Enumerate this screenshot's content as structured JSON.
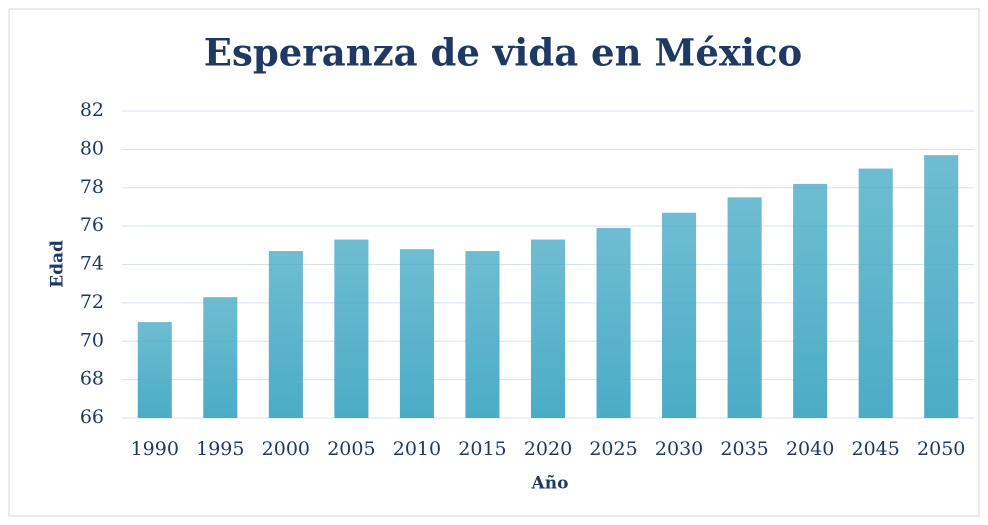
{
  "chart_data": {
    "type": "bar",
    "title": "Esperanza de vida en México",
    "x_label": "Año",
    "y_label": "Edad",
    "categories": [
      "1990",
      "1995",
      "2000",
      "2005",
      "2010",
      "2015",
      "2020",
      "2025",
      "2030",
      "2035",
      "2040",
      "2045",
      "2050"
    ],
    "values": [
      71.0,
      72.3,
      74.7,
      75.3,
      74.8,
      74.7,
      75.3,
      75.9,
      76.7,
      77.5,
      78.2,
      79.0,
      79.7
    ],
    "color": "#4bacc6",
    "ylim": [
      66,
      82
    ],
    "yticks": [
      66,
      68,
      70,
      72,
      74,
      76,
      78,
      80,
      82
    ],
    "grid": true
  }
}
